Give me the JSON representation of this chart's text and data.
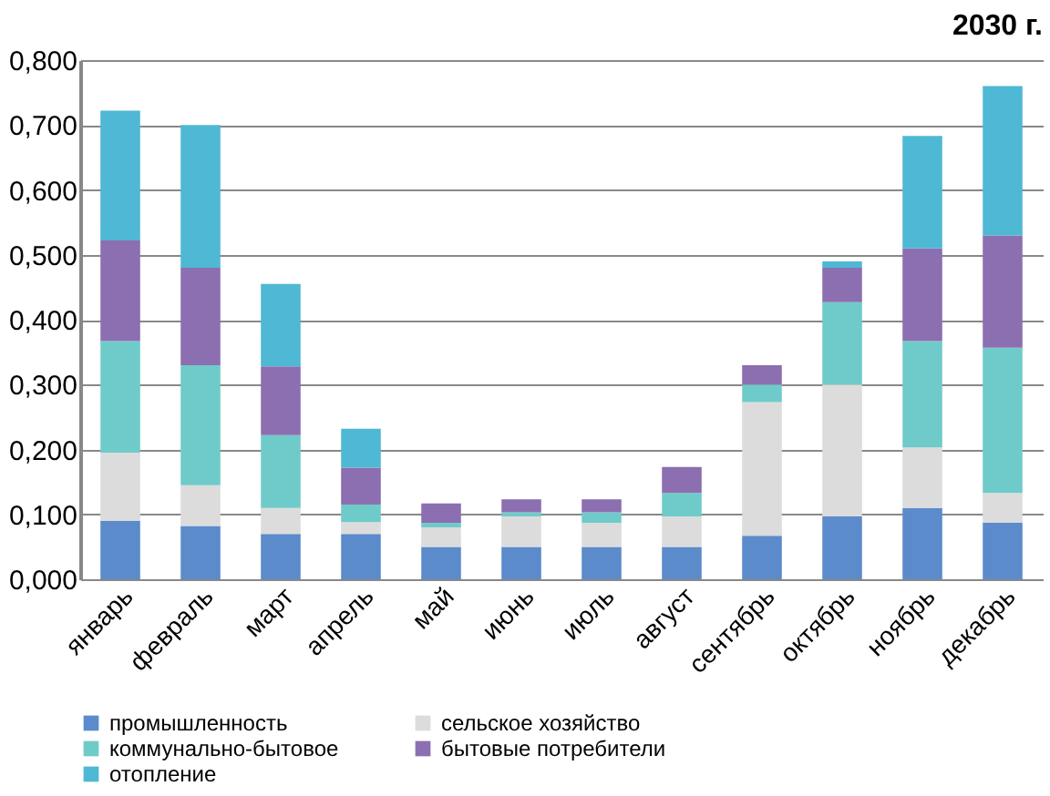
{
  "chart_data": {
    "type": "bar",
    "title": "2030 г.",
    "stacked": true,
    "grid": "y",
    "legend": "bottom",
    "categories": [
      "январь",
      "февраль",
      "март",
      "апрель",
      "май",
      "июнь",
      "июль",
      "август",
      "сентябрь",
      "октябрь",
      "ноябрь",
      "декабрь"
    ],
    "ylim": [
      0,
      0.8
    ],
    "yticks": [
      {
        "value": 0,
        "label": "0,000"
      },
      {
        "value": 0.1,
        "label": "0,100"
      },
      {
        "value": 0.2,
        "label": "0,200"
      },
      {
        "value": 0.3,
        "label": "0,300"
      },
      {
        "value": 0.4,
        "label": "0,400"
      },
      {
        "value": 0.5,
        "label": "0,500"
      },
      {
        "value": 0.6,
        "label": "0,600"
      },
      {
        "value": 0.7,
        "label": "0,700"
      },
      {
        "value": 0.8,
        "label": "0,800"
      }
    ],
    "series": [
      {
        "name": "промышленность",
        "color": "#5b8bcb",
        "values": [
          0.09,
          0.082,
          0.07,
          0.07,
          0.05,
          0.05,
          0.05,
          0.05,
          0.067,
          0.097,
          0.11,
          0.087
        ]
      },
      {
        "name": "сельское хозяйство",
        "color": "#dcdcdc",
        "values": [
          0.105,
          0.063,
          0.04,
          0.018,
          0.03,
          0.047,
          0.037,
          0.047,
          0.206,
          0.203,
          0.093,
          0.046
        ]
      },
      {
        "name": "коммунально-бытовое",
        "color": "#6fcbc9",
        "values": [
          0.172,
          0.185,
          0.112,
          0.027,
          0.007,
          0.006,
          0.016,
          0.036,
          0.027,
          0.127,
          0.164,
          0.224
        ]
      },
      {
        "name": "бытовые потребители",
        "color": "#8c6fb0",
        "values": [
          0.155,
          0.15,
          0.106,
          0.057,
          0.03,
          0.02,
          0.02,
          0.04,
          0.03,
          0.053,
          0.143,
          0.173
        ]
      },
      {
        "name": "отопление",
        "color": "#4fb8d4",
        "values": [
          0.2,
          0.22,
          0.127,
          0.06,
          0,
          0,
          0,
          0,
          0,
          0.01,
          0.173,
          0.23
        ]
      }
    ]
  }
}
